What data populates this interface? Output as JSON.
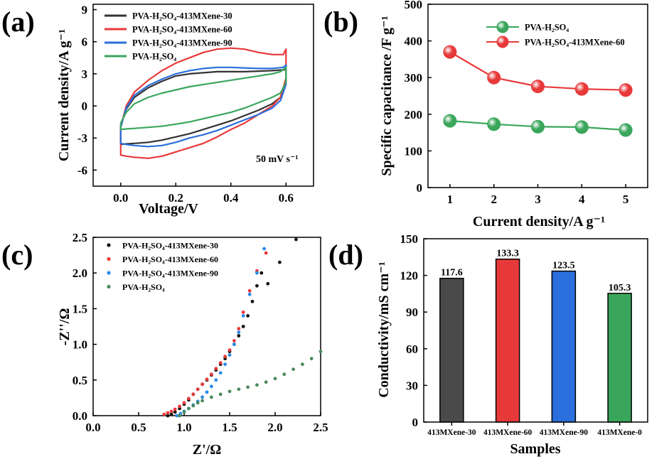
{
  "figure": {
    "panels": [
      "(a)",
      "(b)",
      "(c)",
      "(d)"
    ]
  },
  "chart_data": [
    {
      "panel": "(a)",
      "type": "line",
      "title": "",
      "xlabel": "Voltage/V",
      "ylabel": "Current density/A g⁻¹",
      "xlim": [
        -0.1,
        0.7
      ],
      "ylim": [
        -7.5,
        9.5
      ],
      "xticks": [
        0.0,
        0.2,
        0.4,
        0.6
      ],
      "xtick_labels": [
        "0.0",
        "0.2",
        "0.4",
        "0.6"
      ],
      "yticks": [
        -6,
        -3,
        0,
        3,
        6,
        9
      ],
      "ytick_labels": [
        "-6",
        "-3",
        "0",
        "3",
        "6",
        "9"
      ],
      "annotation": "50 mV s⁻¹",
      "legend_position": "top-left",
      "series": [
        {
          "name": "PVA-H₂SO₄-413MXene-30",
          "color": "#333333",
          "x": [
            0,
            0.02,
            0.05,
            0.1,
            0.15,
            0.2,
            0.25,
            0.3,
            0.35,
            0.4,
            0.45,
            0.5,
            0.55,
            0.58,
            0.6,
            0.6,
            0.58,
            0.55,
            0.5,
            0.45,
            0.4,
            0.35,
            0.3,
            0.25,
            0.2,
            0.15,
            0.1,
            0.05,
            0.02,
            0,
            0
          ],
          "y": [
            -1.8,
            -0.3,
            0.8,
            1.7,
            2.3,
            2.8,
            3.0,
            3.1,
            3.2,
            3.2,
            3.2,
            3.25,
            3.3,
            3.35,
            3.4,
            2.2,
            0.8,
            0.2,
            -0.4,
            -0.9,
            -1.4,
            -1.8,
            -2.2,
            -2.6,
            -2.9,
            -3.2,
            -3.4,
            -3.5,
            -3.55,
            -3.6,
            -1.8
          ]
        },
        {
          "name": "PVA-H₂SO₄-413MXene-60",
          "color": "#e8393a",
          "x": [
            0,
            0.02,
            0.05,
            0.1,
            0.15,
            0.2,
            0.25,
            0.3,
            0.35,
            0.4,
            0.45,
            0.5,
            0.55,
            0.59,
            0.6,
            0.6,
            0.58,
            0.55,
            0.5,
            0.45,
            0.4,
            0.35,
            0.3,
            0.25,
            0.2,
            0.15,
            0.1,
            0.05,
            0.02,
            0,
            0
          ],
          "y": [
            -2.0,
            0.0,
            1.3,
            2.4,
            3.3,
            4.0,
            4.5,
            5.0,
            5.3,
            5.4,
            5.3,
            5.0,
            4.8,
            4.8,
            5.3,
            2.6,
            0.8,
            0.0,
            -0.8,
            -1.6,
            -2.2,
            -2.9,
            -3.5,
            -3.9,
            -4.3,
            -4.7,
            -4.9,
            -4.8,
            -4.7,
            -4.6,
            -2.0
          ]
        },
        {
          "name": "PVA-H₂SO₄-413MXene-90",
          "color": "#2a6fdb",
          "x": [
            0,
            0.02,
            0.05,
            0.1,
            0.15,
            0.2,
            0.25,
            0.3,
            0.35,
            0.4,
            0.45,
            0.5,
            0.55,
            0.59,
            0.6,
            0.6,
            0.58,
            0.55,
            0.5,
            0.45,
            0.4,
            0.35,
            0.3,
            0.25,
            0.2,
            0.15,
            0.1,
            0.05,
            0.02,
            0,
            0
          ],
          "y": [
            -2.0,
            -0.2,
            1.0,
            1.9,
            2.5,
            3.0,
            3.3,
            3.5,
            3.6,
            3.6,
            3.55,
            3.5,
            3.5,
            3.6,
            3.8,
            2.0,
            0.5,
            -0.2,
            -0.8,
            -1.3,
            -1.8,
            -2.3,
            -2.7,
            -3.0,
            -3.4,
            -3.7,
            -3.8,
            -3.7,
            -3.6,
            -3.5,
            -2.0
          ]
        },
        {
          "name": "PVA-H₂SO₄",
          "color": "#3aa65b",
          "x": [
            0,
            0.02,
            0.05,
            0.1,
            0.15,
            0.2,
            0.25,
            0.3,
            0.35,
            0.4,
            0.45,
            0.5,
            0.55,
            0.58,
            0.6,
            0.6,
            0.58,
            0.55,
            0.5,
            0.45,
            0.4,
            0.35,
            0.3,
            0.25,
            0.2,
            0.15,
            0.1,
            0.05,
            0.02,
            0,
            0
          ],
          "y": [
            -1.6,
            -0.6,
            0.2,
            0.8,
            1.2,
            1.5,
            1.8,
            2.0,
            2.2,
            2.4,
            2.6,
            2.8,
            3.0,
            3.2,
            3.6,
            2.2,
            1.2,
            0.8,
            0.3,
            -0.2,
            -0.6,
            -0.9,
            -1.2,
            -1.5,
            -1.7,
            -1.9,
            -2.0,
            -2.1,
            -2.15,
            -2.2,
            -1.6
          ]
        }
      ]
    },
    {
      "panel": "(b)",
      "type": "line",
      "title": "",
      "xlabel": "Current density/A g⁻¹",
      "ylabel": "Specific capacitance /F g⁻¹",
      "xlim": [
        0.5,
        5.5
      ],
      "ylim": [
        0,
        500
      ],
      "xticks": [
        1,
        2,
        3,
        4,
        5
      ],
      "xtick_labels": [
        "1",
        "2",
        "3",
        "4",
        "5"
      ],
      "yticks": [
        0,
        100,
        200,
        300,
        400,
        500
      ],
      "ytick_labels": [
        "0",
        "100",
        "200",
        "300",
        "400",
        "500"
      ],
      "legend_position": "top-right",
      "series": [
        {
          "name": "PVA-H₂SO₄",
          "color": "#3aa65b",
          "x": [
            1,
            2,
            3,
            4,
            5
          ],
          "y": [
            182,
            173,
            166,
            165,
            157
          ]
        },
        {
          "name": "PVA-H₂SO₄-413MXene-60",
          "color": "#e8393a",
          "x": [
            1,
            2,
            3,
            4,
            5
          ],
          "y": [
            370,
            300,
            276,
            269,
            266
          ]
        }
      ]
    },
    {
      "panel": "(c)",
      "type": "scatter",
      "title": "",
      "xlabel": "Z'/Ω",
      "ylabel": "-Z''/Ω",
      "xlim": [
        0,
        2.5
      ],
      "ylim": [
        0,
        2.5
      ],
      "xticks": [
        0.0,
        0.5,
        1.0,
        1.5,
        2.0,
        2.5
      ],
      "xtick_labels": [
        "0.0",
        "0.5",
        "1.0",
        "1.5",
        "2.0",
        "2.5"
      ],
      "yticks": [
        0.0,
        0.5,
        1.0,
        1.5,
        2.0,
        2.5
      ],
      "ytick_labels": [
        "0.0",
        "0.5",
        "1.0",
        "1.5",
        "2.0",
        "2.5"
      ],
      "legend_position": "top-left",
      "series": [
        {
          "name": "PVA-H₂SO₄-413MXene-30",
          "color": "#111111",
          "x": [
            0.82,
            0.86,
            0.9,
            0.95,
            1.0,
            1.05,
            1.1,
            1.15,
            1.2,
            1.25,
            1.3,
            1.35,
            1.4,
            1.45,
            1.5,
            1.55,
            1.6,
            1.65,
            1.7,
            1.75,
            1.8,
            1.85,
            1.92,
            2.05,
            2.23
          ],
          "y": [
            0.0,
            0.02,
            0.05,
            0.1,
            0.16,
            0.22,
            0.3,
            0.37,
            0.44,
            0.5,
            0.57,
            0.64,
            0.72,
            0.8,
            0.9,
            1.0,
            1.12,
            1.25,
            1.4,
            1.6,
            1.82,
            2.0,
            1.85,
            2.15,
            2.47
          ]
        },
        {
          "name": "PVA-H₂SO₄-413MXene-60",
          "color": "#e8393a",
          "x": [
            0.78,
            0.82,
            0.86,
            0.9,
            0.95,
            1.0,
            1.05,
            1.1,
            1.15,
            1.2,
            1.25,
            1.3,
            1.35,
            1.4,
            1.45,
            1.5,
            1.55,
            1.6,
            1.65,
            1.72,
            1.8,
            1.9
          ],
          "y": [
            0.02,
            0.04,
            0.06,
            0.09,
            0.13,
            0.18,
            0.24,
            0.3,
            0.37,
            0.44,
            0.51,
            0.58,
            0.66,
            0.74,
            0.83,
            0.92,
            1.05,
            1.22,
            1.45,
            1.75,
            2.03,
            2.28
          ]
        },
        {
          "name": "PVA-H₂SO₄-413MXene-90",
          "color": "#2a8ae8",
          "x": [
            0.92,
            0.96,
            1.0,
            1.05,
            1.1,
            1.15,
            1.2,
            1.25,
            1.3,
            1.35,
            1.4,
            1.45,
            1.5,
            1.55,
            1.6,
            1.65,
            1.72,
            1.8,
            1.88
          ],
          "y": [
            0.0,
            0.03,
            0.06,
            0.1,
            0.15,
            0.2,
            0.26,
            0.33,
            0.41,
            0.5,
            0.6,
            0.72,
            0.85,
            1.0,
            1.17,
            1.4,
            1.7,
            2.0,
            2.34
          ]
        },
        {
          "name": "PVA-H₂SO₄",
          "color": "#4a8a5e",
          "x": [
            0.95,
            1.0,
            1.05,
            1.1,
            1.15,
            1.2,
            1.3,
            1.4,
            1.5,
            1.6,
            1.7,
            1.8,
            1.9,
            2.0,
            2.1,
            2.2,
            2.3,
            2.4,
            2.5
          ],
          "y": [
            0.0,
            0.05,
            0.1,
            0.14,
            0.18,
            0.21,
            0.26,
            0.3,
            0.34,
            0.37,
            0.4,
            0.43,
            0.47,
            0.52,
            0.58,
            0.65,
            0.72,
            0.8,
            0.9
          ]
        }
      ]
    },
    {
      "panel": "(d)",
      "type": "bar",
      "title": "",
      "xlabel": "Samples",
      "ylabel": "Conductivity/mS cm⁻¹",
      "ylim": [
        0,
        150
      ],
      "yticks": [
        0,
        30,
        60,
        90,
        120,
        150
      ],
      "ytick_labels": [
        "0",
        "30",
        "60",
        "90",
        "120",
        "150"
      ],
      "categories": [
        "413MXene-30",
        "413MXene-60",
        "413MXene-90",
        "413MXene-0"
      ],
      "values": [
        117.6,
        133.3,
        123.5,
        105.3
      ],
      "value_labels": [
        "117.6",
        "133.3",
        "123.5",
        "105.3"
      ],
      "colors": [
        "#4a4a4a",
        "#e8393a",
        "#2a6fdb",
        "#3aa65b"
      ]
    }
  ]
}
